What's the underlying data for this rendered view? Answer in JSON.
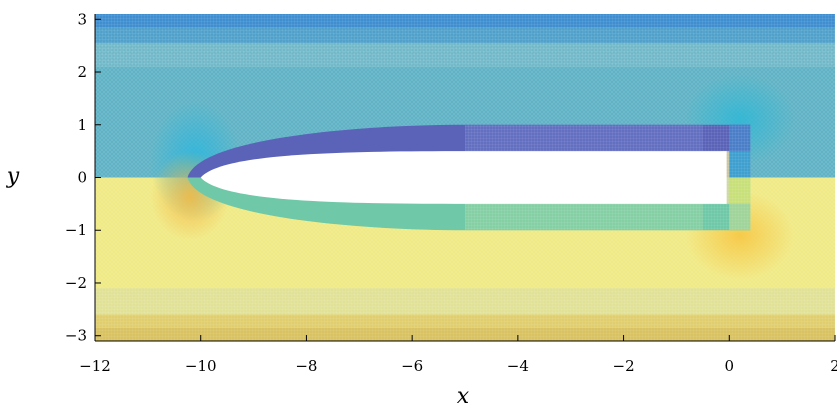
{
  "chart_data": {
    "type": "mesh",
    "xlabel": "x",
    "ylabel": "y",
    "xlim": [
      -12,
      2
    ],
    "ylim": [
      -3.1,
      3.1
    ],
    "xticks": [
      {
        "value": -12,
        "label": "−12"
      },
      {
        "value": -10,
        "label": "−10"
      },
      {
        "value": -8,
        "label": "−8"
      },
      {
        "value": -6,
        "label": "−6"
      },
      {
        "value": -4,
        "label": "−4"
      },
      {
        "value": -2,
        "label": "−2"
      },
      {
        "value": 0,
        "label": "0"
      },
      {
        "value": 2,
        "label": "2"
      }
    ],
    "yticks": [
      {
        "value": -3,
        "label": "−3"
      },
      {
        "value": -2,
        "label": "−2"
      },
      {
        "value": -1,
        "label": "−1"
      },
      {
        "value": 0,
        "label": "0"
      },
      {
        "value": 1,
        "label": "1"
      },
      {
        "value": 2,
        "label": "2"
      },
      {
        "value": 3,
        "label": "3"
      }
    ],
    "colors": {
      "upper_field": "#5fb3c4",
      "upper_band": "#3f8fd0",
      "lower_field": "#f0ea86",
      "lower_band": "#d9c262",
      "boundary_layer_upper": "#5a63b8",
      "boundary_layer_lower": "#6fc8a8",
      "body": "#ffffff"
    }
  }
}
